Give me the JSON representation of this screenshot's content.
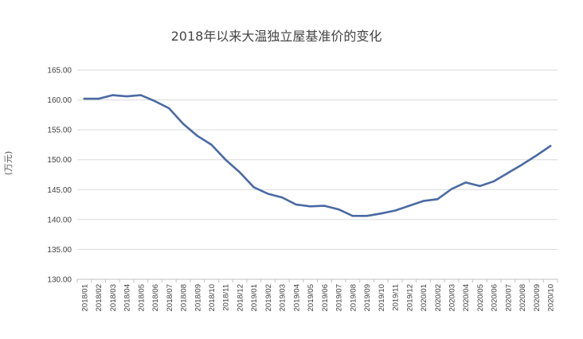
{
  "chart_data": {
    "type": "line",
    "title": "2018年以来大温独立屋基准价的变化",
    "ylabel": "(万元)",
    "xlabel": "",
    "ylim": [
      130,
      165
    ],
    "yticks": [
      "130.00",
      "135.00",
      "140.00",
      "145.00",
      "150.00",
      "155.00",
      "160.00",
      "165.00"
    ],
    "grid": true,
    "legend": "none",
    "color": "#4a6aa3",
    "categories": [
      "2018/01",
      "2018/02",
      "2018/03",
      "2018/04",
      "2018/05",
      "2018/06",
      "2018/07",
      "2018/08",
      "2018/09",
      "2018/10",
      "2018/11",
      "2018/12",
      "2019/01",
      "2019/02",
      "2019/03",
      "2019/04",
      "2019/05",
      "2019/06",
      "2019/07",
      "2019/08",
      "2019/09",
      "2019/10",
      "2019/11",
      "2019/12",
      "2020/01",
      "2020/02",
      "2020/03",
      "2020/04",
      "2020/05",
      "2020/06",
      "2020/07",
      "2020/08",
      "2020/09",
      "2020/10"
    ],
    "values": [
      160.2,
      160.2,
      160.8,
      160.6,
      160.8,
      159.8,
      158.6,
      156.0,
      154.0,
      152.5,
      150.0,
      147.9,
      145.4,
      144.3,
      143.7,
      142.5,
      142.2,
      142.3,
      141.7,
      140.6,
      140.6,
      141.0,
      141.5,
      142.3,
      143.1,
      143.4,
      145.1,
      146.2,
      145.6,
      146.4,
      147.8,
      149.2,
      150.7,
      152.3
    ]
  }
}
